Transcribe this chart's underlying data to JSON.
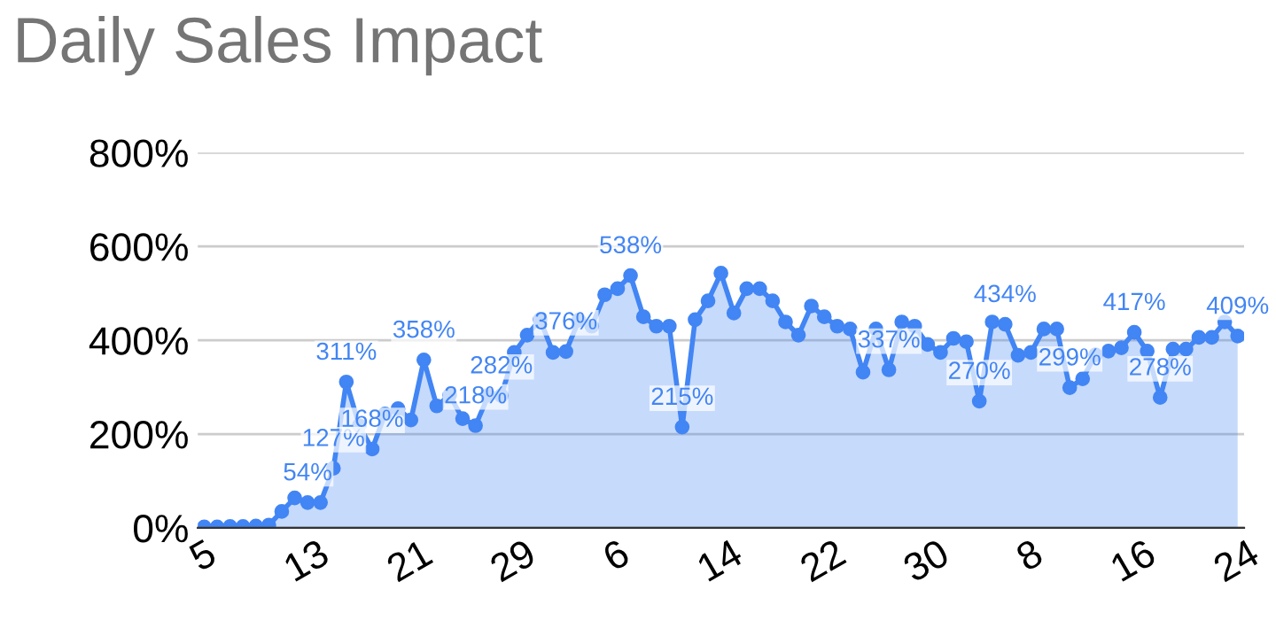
{
  "chart_data": {
    "type": "area",
    "title": "Daily Sales Impact",
    "categories": [
      "5",
      null,
      null,
      null,
      null,
      null,
      null,
      null,
      "13",
      null,
      null,
      null,
      null,
      null,
      null,
      null,
      "21",
      null,
      null,
      null,
      null,
      null,
      null,
      null,
      "29",
      null,
      null,
      null,
      null,
      null,
      null,
      null,
      "6",
      null,
      null,
      null,
      null,
      null,
      null,
      null,
      "14",
      null,
      null,
      null,
      null,
      null,
      null,
      null,
      "22",
      null,
      null,
      null,
      null,
      null,
      null,
      null,
      "30",
      null,
      null,
      null,
      null,
      null,
      null,
      null,
      "8",
      null,
      null,
      null,
      null,
      null,
      null,
      null,
      "16",
      null,
      null,
      null,
      null,
      null,
      null,
      null,
      "24"
    ],
    "series": [
      {
        "color": "#4285f4",
        "values": [
          2,
          2,
          3,
          3,
          4,
          6,
          35,
          64,
          54,
          54,
          127,
          311,
          218,
          168,
          243,
          254,
          230,
          358,
          260,
          283,
          233,
          218,
          283,
          282,
          374,
          411,
          444,
          374,
          376,
          443,
          430,
          497,
          510,
          538,
          450,
          430,
          430,
          215,
          444,
          484,
          543,
          458,
          510,
          510,
          484,
          439,
          411,
          473,
          450,
          430,
          424,
          332,
          424,
          337,
          439,
          430,
          391,
          374,
          404,
          397,
          270,
          439,
          434,
          368,
          374,
          424,
          424,
          299,
          318,
          369,
          377,
          384,
          417,
          377,
          278,
          381,
          381,
          406,
          406,
          439,
          409
        ],
        "value_labels": [
          null,
          null,
          null,
          null,
          null,
          null,
          null,
          null,
          "54%",
          null,
          "127%",
          "311%",
          null,
          "168%",
          null,
          null,
          null,
          "358%",
          null,
          null,
          null,
          "218%",
          null,
          "282%",
          null,
          null,
          null,
          null,
          "376%",
          null,
          null,
          null,
          null,
          "538%",
          null,
          null,
          null,
          "215%",
          null,
          null,
          null,
          null,
          null,
          null,
          null,
          null,
          null,
          null,
          null,
          null,
          null,
          null,
          null,
          "337%",
          null,
          null,
          null,
          null,
          null,
          null,
          "270%",
          null,
          "434%",
          null,
          null,
          null,
          null,
          "299%",
          null,
          null,
          null,
          null,
          "417%",
          null,
          "278%",
          null,
          null,
          null,
          null,
          null,
          "409%"
        ]
      }
    ],
    "ylim": [
      0,
      800
    ],
    "yticks": [
      {
        "value": 0,
        "label": "0%"
      },
      {
        "value": 200,
        "label": "200%"
      },
      {
        "value": 400,
        "label": "400%"
      },
      {
        "value": 600,
        "label": "600%"
      },
      {
        "value": 800,
        "label": "800%"
      }
    ],
    "grid": "y",
    "legend": false,
    "marker": "circle",
    "line_style": "solid"
  }
}
